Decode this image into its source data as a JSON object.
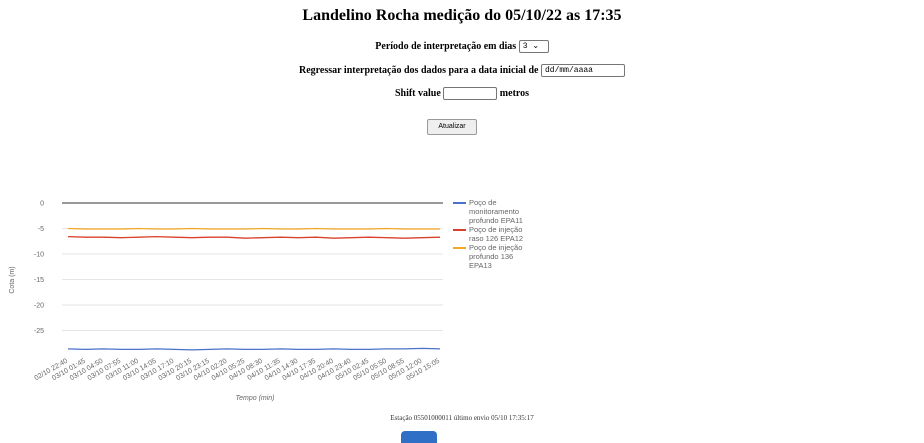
{
  "header": {
    "title": "Landelino Rocha medição do 05/10/22 as 17:35"
  },
  "form": {
    "period_label": "Período de interpretação em dias",
    "period_value": "3",
    "date_label": "Regressar interpretação dos dados para a data inicial de",
    "date_placeholder": "dd/mm/aaaa",
    "shift_label": "Shift value",
    "shift_unit": "metros",
    "button": "Atualizar"
  },
  "chart_data": {
    "type": "line",
    "y_label": "Cota (m)",
    "x_label": "Tempo (min)",
    "categories": [
      "02/10 22:40",
      "03/10 01:45",
      "03/10 04:50",
      "03/10 07:55",
      "03/10 11:00",
      "03/10 14:05",
      "03/10 17:10",
      "03/10 20:15",
      "03/10 23:15",
      "04/10 02:20",
      "04/10 05:25",
      "04/10 08:30",
      "04/10 11:35",
      "04/10 14:30",
      "04/10 17:35",
      "04/10 20:40",
      "04/10 23:40",
      "05/10 02:45",
      "05/10 05:50",
      "05/10 08:55",
      "05/10 12:00",
      "05/10 15:05"
    ],
    "series": [
      {
        "name": "Poço de monitoramento profundo EPA11",
        "color": "#4a72c9",
        "values": [
          -28.6,
          -28.7,
          -28.6,
          -28.7,
          -28.7,
          -28.6,
          -28.7,
          -28.8,
          -28.7,
          -28.6,
          -28.7,
          -28.7,
          -28.6,
          -28.7,
          -28.7,
          -28.6,
          -28.7,
          -28.7,
          -28.6,
          -28.6,
          -28.5,
          -28.6
        ]
      },
      {
        "name": "Poço de injeção raso 126 EPA12",
        "color": "#d9412b",
        "values": [
          -6.6,
          -6.7,
          -6.7,
          -6.8,
          -6.7,
          -6.6,
          -6.7,
          -6.8,
          -6.7,
          -6.7,
          -6.9,
          -6.8,
          -6.7,
          -6.8,
          -6.7,
          -6.9,
          -6.8,
          -6.7,
          -6.8,
          -6.9,
          -6.8,
          -6.7
        ]
      },
      {
        "name": "Poço de injeção profundo 136 EPA13",
        "color": "#f5a623",
        "values": [
          -5.0,
          -5.1,
          -5.1,
          -5.1,
          -5.0,
          -5.1,
          -5.1,
          -5.0,
          -5.1,
          -5.1,
          -5.1,
          -5.0,
          -5.1,
          -5.1,
          -5.0,
          -5.1,
          -5.1,
          -5.1,
          -5.0,
          -5.1,
          -5.1,
          -5.1
        ]
      }
    ],
    "ylim": [
      -30,
      0
    ],
    "yticks": [
      0,
      -5,
      -10,
      -15,
      -20,
      -25
    ],
    "grid": true
  },
  "footer": {
    "status": "Estação 05501000011 último envio 05/10 17:35:17"
  }
}
